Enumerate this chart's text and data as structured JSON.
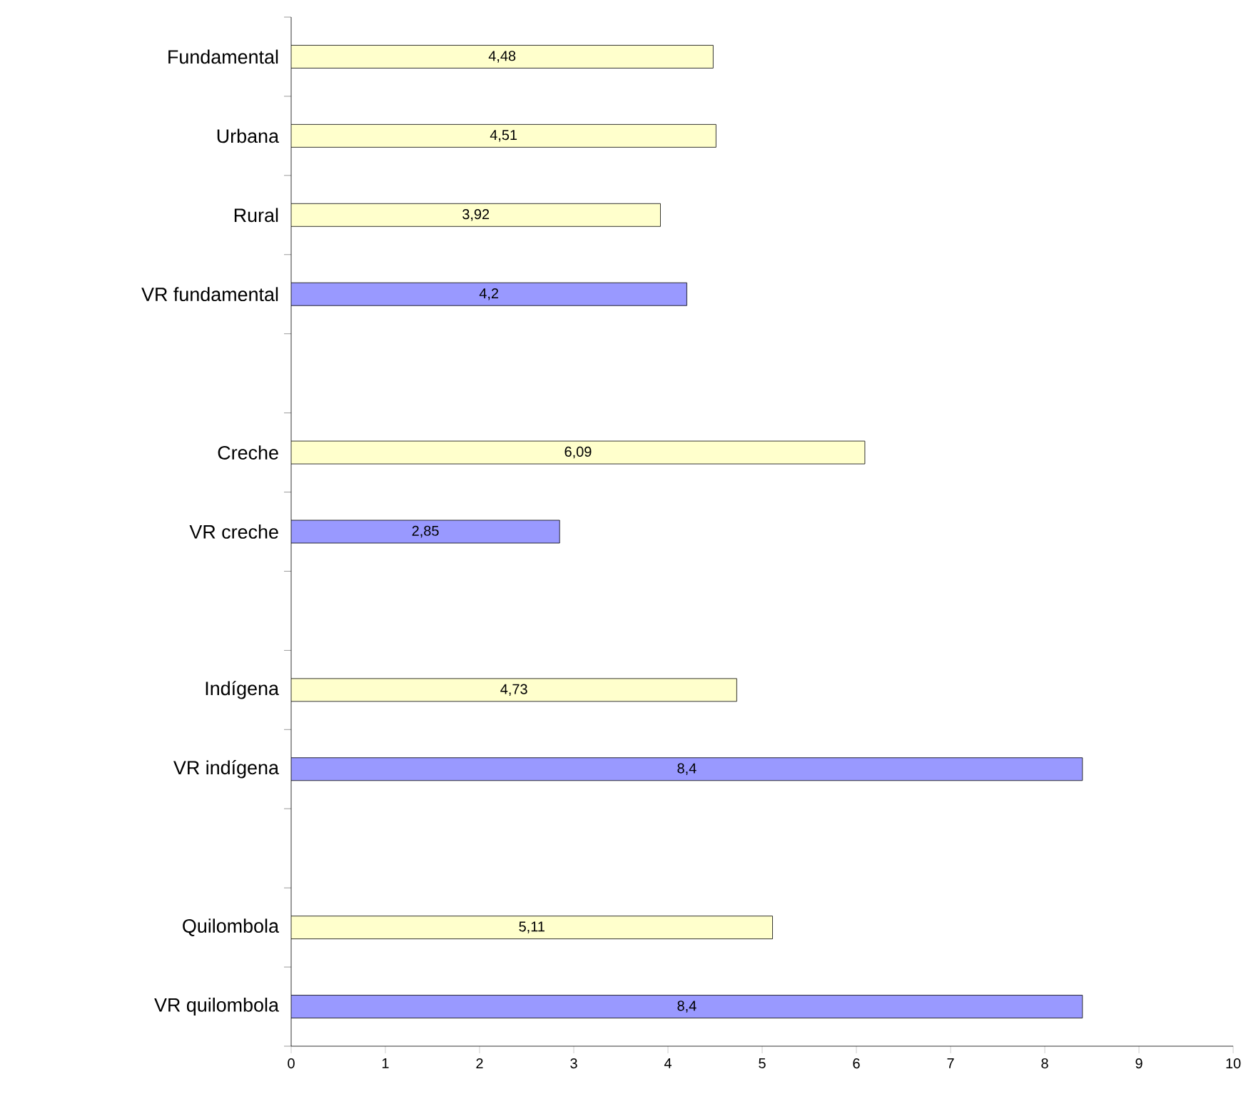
{
  "chart_data": {
    "type": "bar",
    "orientation": "horizontal",
    "categories": [
      "Fundamental",
      "Urbana",
      "Rural",
      "VR fundamental",
      null,
      "Creche",
      "VR creche",
      null,
      "Indígena",
      "VR indígena",
      null,
      "Quilombola",
      "VR quilombola"
    ],
    "values": [
      4.48,
      4.51,
      3.92,
      4.2,
      null,
      6.09,
      2.85,
      null,
      4.73,
      8.4,
      null,
      5.11,
      8.4
    ],
    "colors": [
      "#ffffcc",
      "#ffffcc",
      "#ffffcc",
      "#9999ff",
      null,
      "#ffffcc",
      "#9999ff",
      null,
      "#ffffcc",
      "#9999ff",
      null,
      "#ffffcc",
      "#9999ff"
    ],
    "value_labels": [
      "4,48",
      "4,51",
      "3,92",
      "4,2",
      null,
      "6,09",
      "2,85",
      null,
      "4,73",
      "8,4",
      null,
      "5,11",
      "8,4"
    ],
    "xlim": [
      0,
      10
    ],
    "xticks": [
      0,
      1,
      2,
      3,
      4,
      5,
      6,
      7,
      8,
      9,
      10
    ]
  }
}
